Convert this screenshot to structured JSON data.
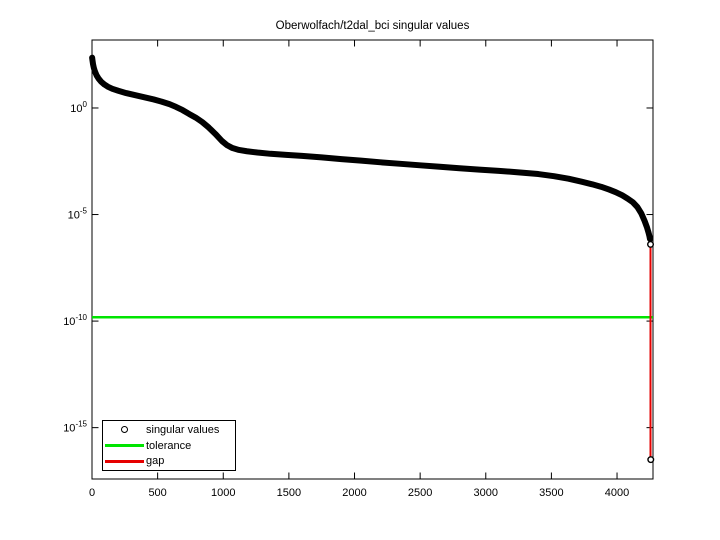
{
  "chart_data": {
    "type": "line",
    "title": "Oberwolfach/t2dal_bci singular values",
    "xlabel": "",
    "ylabel": "",
    "grid": false,
    "x_axis": {
      "min": 0,
      "max": 4274,
      "ticks": [
        0,
        500,
        1000,
        1500,
        2000,
        2500,
        3000,
        3500,
        4000
      ]
    },
    "y_axis": {
      "scale": "log10",
      "top_exp": 3.19,
      "bottom_exp": -17.41,
      "tick_base": "10",
      "tick_exps": [
        "0",
        "-5",
        "-10",
        "-15"
      ]
    },
    "series": [
      {
        "name": "singular values",
        "color": "#000000",
        "marker": "o",
        "points_log10": [
          [
            1,
            2.36
          ],
          [
            4,
            2.22
          ],
          [
            8,
            2.05
          ],
          [
            14,
            1.88
          ],
          [
            22,
            1.72
          ],
          [
            35,
            1.53
          ],
          [
            50,
            1.38
          ],
          [
            70,
            1.23
          ],
          [
            95,
            1.1
          ],
          [
            120,
            1.0
          ],
          [
            155,
            0.9
          ],
          [
            200,
            0.81
          ],
          [
            260,
            0.7
          ],
          [
            330,
            0.6
          ],
          [
            400,
            0.5
          ],
          [
            470,
            0.4
          ],
          [
            530,
            0.3
          ],
          [
            590,
            0.18
          ],
          [
            640,
            0.05
          ],
          [
            690,
            -0.1
          ],
          [
            740,
            -0.28
          ],
          [
            790,
            -0.45
          ],
          [
            840,
            -0.66
          ],
          [
            890,
            -0.92
          ],
          [
            940,
            -1.22
          ],
          [
            990,
            -1.55
          ],
          [
            1030,
            -1.75
          ],
          [
            1070,
            -1.88
          ],
          [
            1120,
            -1.97
          ],
          [
            1180,
            -2.03
          ],
          [
            1260,
            -2.09
          ],
          [
            1360,
            -2.15
          ],
          [
            1480,
            -2.2
          ],
          [
            1600,
            -2.25
          ],
          [
            1750,
            -2.32
          ],
          [
            1900,
            -2.4
          ],
          [
            2050,
            -2.47
          ],
          [
            2200,
            -2.55
          ],
          [
            2350,
            -2.62
          ],
          [
            2500,
            -2.69
          ],
          [
            2650,
            -2.76
          ],
          [
            2800,
            -2.83
          ],
          [
            2950,
            -2.89
          ],
          [
            3100,
            -2.95
          ],
          [
            3250,
            -3.02
          ],
          [
            3400,
            -3.1
          ],
          [
            3520,
            -3.2
          ],
          [
            3630,
            -3.32
          ],
          [
            3730,
            -3.46
          ],
          [
            3810,
            -3.58
          ],
          [
            3880,
            -3.7
          ],
          [
            3940,
            -3.83
          ],
          [
            3990,
            -3.95
          ],
          [
            4040,
            -4.1
          ],
          [
            4080,
            -4.25
          ],
          [
            4120,
            -4.42
          ],
          [
            4155,
            -4.65
          ],
          [
            4185,
            -4.95
          ],
          [
            4210,
            -5.3
          ],
          [
            4228,
            -5.6
          ],
          [
            4240,
            -5.85
          ],
          [
            4247,
            -6.02
          ],
          [
            4251,
            -6.15
          ]
        ]
      },
      {
        "name": "tolerance",
        "color": "#00e400",
        "value_log10": -9.82
      },
      {
        "name": "gap",
        "color": "#e60000",
        "x": 4255,
        "top_log10": -6.4,
        "bottom_log10": -16.5
      }
    ],
    "isolated_points_log10": [
      [
        4255,
        -6.4
      ],
      [
        4257,
        -16.5
      ]
    ],
    "legend": {
      "position": "southwest",
      "entries": [
        {
          "label": "singular values",
          "marker": "circle",
          "color": "#000000"
        },
        {
          "label": "tolerance",
          "marker": "line",
          "color": "#00e400"
        },
        {
          "label": "gap",
          "marker": "line",
          "color": "#e60000"
        }
      ]
    }
  }
}
